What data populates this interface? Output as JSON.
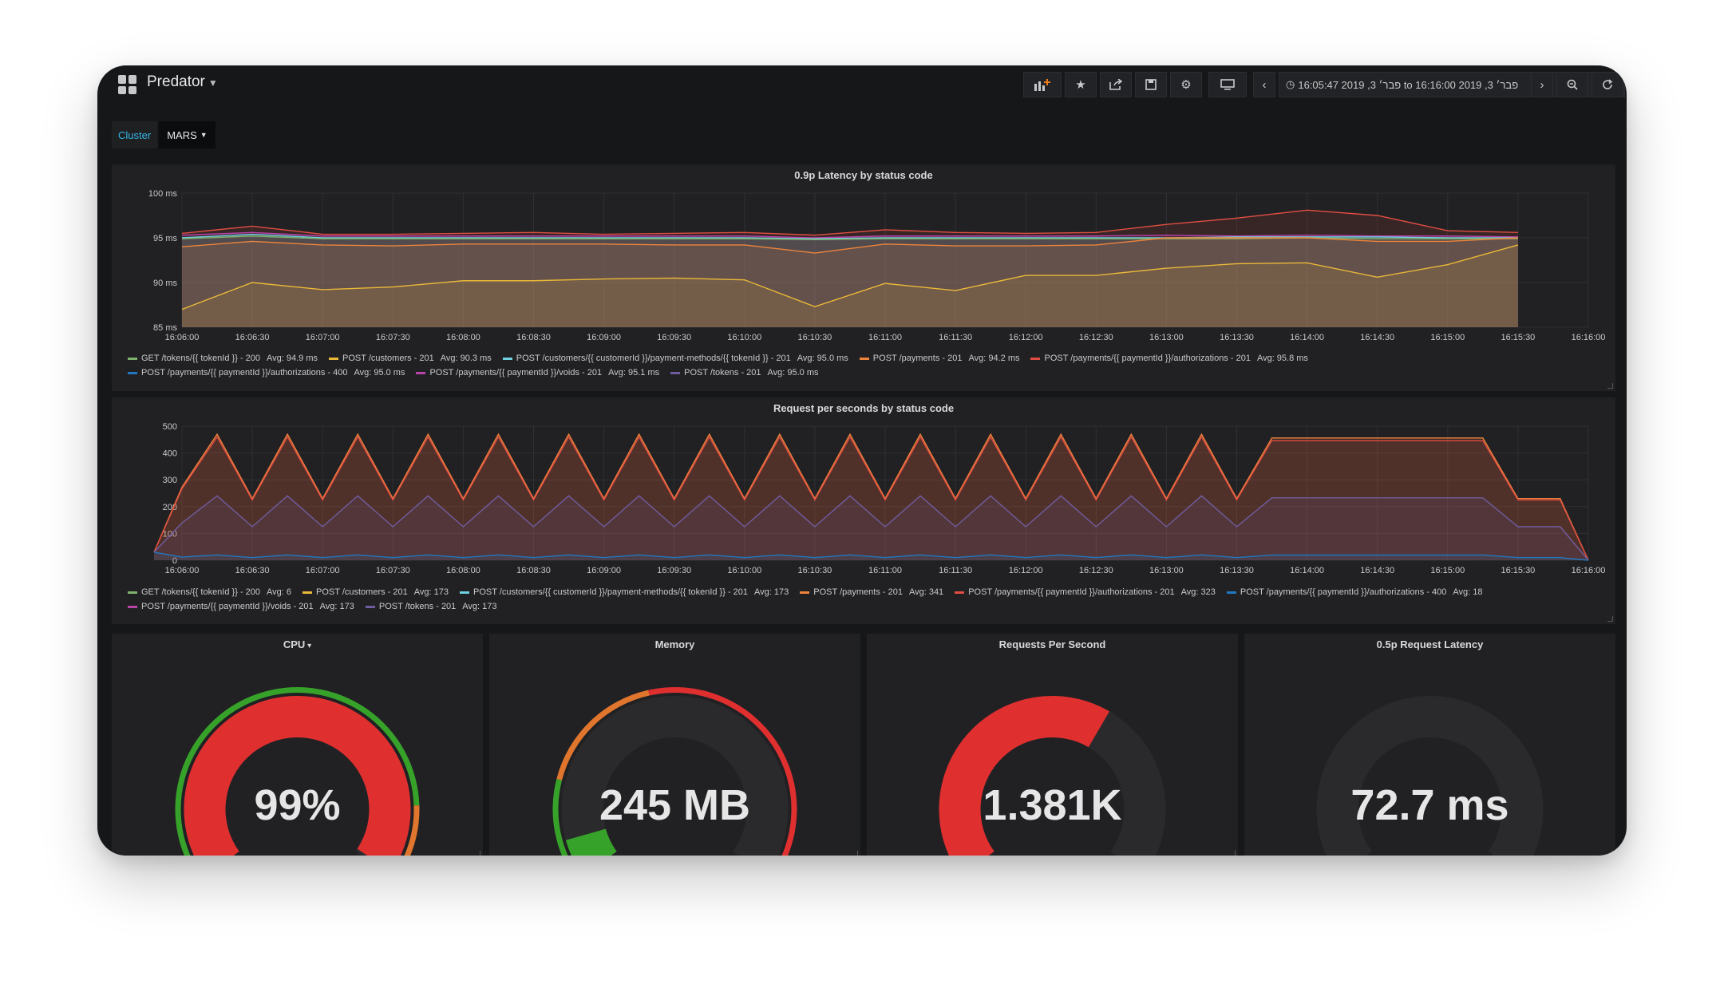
{
  "header": {
    "title": "Predator",
    "time_range": "16:05:47 2019 ,3 פבר׳ to 16:16:00 2019 ,3 פבר׳"
  },
  "variables": {
    "label": "Cluster",
    "value": "MARS"
  },
  "icons": [
    "grid-icon",
    "add-panel-icon",
    "star-icon",
    "share-icon",
    "save-icon",
    "settings-icon",
    "tv-icon",
    "chevron-left-icon",
    "clock-icon",
    "chevron-right-icon",
    "zoom-out-icon",
    "refresh-icon"
  ],
  "colors": {
    "green": "#7eb26d",
    "yellow": "#eab839",
    "cyan": "#6ed0e0",
    "orange": "#ef843c",
    "red": "#e24d42",
    "blue": "#1f78c1",
    "pink": "#ba43a9",
    "purple": "#705da0"
  },
  "x_ticks": [
    "16:06:00",
    "16:06:30",
    "16:07:00",
    "16:07:30",
    "16:08:00",
    "16:08:30",
    "16:09:00",
    "16:09:30",
    "16:10:00",
    "16:10:30",
    "16:11:00",
    "16:11:30",
    "16:12:00",
    "16:12:30",
    "16:13:00",
    "16:13:30",
    "16:14:00",
    "16:14:30",
    "16:15:00",
    "16:15:30",
    "16:16:00"
  ],
  "latency_panel": {
    "title": "0.9p Latency by status code",
    "y_ticks": [
      "100 ms",
      "95 ms",
      "90 ms",
      "85 ms"
    ],
    "legend": [
      {
        "name": "GET /tokens/{{ tokenId }} - 200",
        "avg": "Avg: 94.9 ms",
        "color": "#7eb26d"
      },
      {
        "name": "POST /customers - 201",
        "avg": "Avg: 90.3 ms",
        "color": "#eab839"
      },
      {
        "name": "POST /customers/{{ customerId }}/payment-methods/{{ tokenId }} - 201",
        "avg": "Avg: 95.0 ms",
        "color": "#6ed0e0"
      },
      {
        "name": "POST /payments - 201",
        "avg": "Avg: 94.2 ms",
        "color": "#ef843c"
      },
      {
        "name": "POST /payments/{{ paymentId }}/authorizations - 201",
        "avg": "Avg: 95.8 ms",
        "color": "#e24d42"
      },
      {
        "name": "POST /payments/{{ paymentId }}/authorizations - 400",
        "avg": "Avg: 95.0 ms",
        "color": "#1f78c1"
      },
      {
        "name": "POST /payments/{{ paymentId }}/voids - 201",
        "avg": "Avg: 95.1 ms",
        "color": "#ba43a9"
      },
      {
        "name": "POST /tokens - 201",
        "avg": "Avg: 95.0 ms",
        "color": "#705da0"
      }
    ]
  },
  "rps_panel": {
    "title": "Request per seconds by status code",
    "y_ticks": [
      "500",
      "400",
      "300",
      "200",
      "100",
      "0"
    ],
    "legend": [
      {
        "name": "GET /tokens/{{ tokenId }} - 200",
        "avg": "Avg: 6",
        "color": "#7eb26d"
      },
      {
        "name": "POST /customers - 201",
        "avg": "Avg: 173",
        "color": "#eab839"
      },
      {
        "name": "POST /customers/{{ customerId }}/payment-methods/{{ tokenId }} - 201",
        "avg": "Avg: 173",
        "color": "#6ed0e0"
      },
      {
        "name": "POST /payments - 201",
        "avg": "Avg: 341",
        "color": "#ef843c"
      },
      {
        "name": "POST /payments/{{ paymentId }}/authorizations - 201",
        "avg": "Avg: 323",
        "color": "#e24d42"
      },
      {
        "name": "POST /payments/{{ paymentId }}/authorizations - 400",
        "avg": "Avg: 18",
        "color": "#1f78c1"
      },
      {
        "name": "POST /payments/{{ paymentId }}/voids - 201",
        "avg": "Avg: 173",
        "color": "#ba43a9"
      },
      {
        "name": "POST /tokens - 201",
        "avg": "Avg: 173",
        "color": "#705da0"
      }
    ]
  },
  "chart_data": [
    {
      "type": "area",
      "title": "0.9p Latency by status code",
      "x": [
        "16:06:00",
        "16:06:30",
        "16:07:00",
        "16:07:30",
        "16:08:00",
        "16:08:30",
        "16:09:00",
        "16:09:30",
        "16:10:00",
        "16:10:30",
        "16:11:00",
        "16:11:30",
        "16:12:00",
        "16:12:30",
        "16:13:00",
        "16:13:30",
        "16:14:00",
        "16:14:30",
        "16:15:00",
        "16:15:30"
      ],
      "ylim": [
        85,
        100
      ],
      "y_unit": "ms",
      "series": [
        {
          "name": "POST /payments/{{ paymentId }}/authorizations - 201",
          "color": "#e24d42",
          "values": [
            95.5,
            96.3,
            95.4,
            95.4,
            95.5,
            95.6,
            95.4,
            95.5,
            95.6,
            95.3,
            95.9,
            95.6,
            95.5,
            95.6,
            96.5,
            97.2,
            98.1,
            97.5,
            95.8,
            95.6
          ]
        },
        {
          "name": "POST /payments/{{ paymentId }}/voids - 201",
          "color": "#ba43a9",
          "values": [
            95.3,
            95.6,
            95.2,
            95.2,
            95.2,
            95.2,
            95.2,
            95.2,
            95.2,
            95.0,
            95.2,
            95.2,
            95.2,
            95.2,
            95.3,
            95.2,
            95.3,
            95.2,
            95.2,
            95.1
          ]
        },
        {
          "name": "POST /customers/{{ customerId }}/payment-methods/{{ tokenId }} - 201",
          "color": "#6ed0e0",
          "values": [
            95.0,
            95.4,
            95.0,
            95.0,
            95.0,
            95.0,
            95.0,
            95.0,
            95.0,
            94.9,
            95.0,
            95.0,
            95.0,
            95.0,
            95.0,
            95.1,
            95.1,
            95.1,
            95.0,
            95.0
          ]
        },
        {
          "name": "GET /tokens/{{ tokenId }} - 200",
          "color": "#7eb26d",
          "values": [
            94.9,
            95.2,
            94.9,
            94.9,
            94.9,
            94.9,
            94.9,
            94.9,
            94.9,
            94.8,
            94.9,
            94.9,
            94.9,
            94.9,
            94.9,
            94.9,
            95.0,
            94.9,
            94.9,
            94.9
          ]
        },
        {
          "name": "POST /payments - 201",
          "color": "#ef843c",
          "values": [
            94.0,
            94.6,
            94.2,
            94.1,
            94.3,
            94.3,
            94.3,
            94.2,
            94.2,
            93.3,
            94.3,
            94.1,
            94.1,
            94.2,
            95.0,
            95.0,
            95.0,
            94.6,
            94.6,
            95.0
          ]
        },
        {
          "name": "POST /customers - 201",
          "color": "#eab839",
          "values": [
            87.0,
            90.0,
            89.2,
            89.5,
            90.2,
            90.2,
            90.4,
            90.5,
            90.3,
            87.3,
            89.9,
            89.1,
            90.8,
            90.8,
            91.6,
            92.1,
            92.2,
            90.6,
            92.0,
            94.2
          ]
        }
      ]
    },
    {
      "type": "area",
      "title": "Request per seconds by status code",
      "x": [
        "16:06:00",
        "16:06:30",
        "16:07:00",
        "16:07:30",
        "16:08:00",
        "16:08:30",
        "16:09:00",
        "16:09:30",
        "16:10:00",
        "16:10:30",
        "16:11:00",
        "16:11:30",
        "16:12:00",
        "16:12:30",
        "16:13:00",
        "16:13:30",
        "16:14:00",
        "16:14:30",
        "16:15:00",
        "16:15:30",
        "16:16:00"
      ],
      "ylim": [
        0,
        500
      ],
      "series": [
        {
          "name": "POST /payments - 201",
          "color": "#ef843c",
          "peak": 470,
          "trough": 230
        },
        {
          "name": "POST /payments/{{ paymentId }}/authorizations - 201",
          "color": "#e24d42",
          "peak": 460,
          "trough": 225
        },
        {
          "name": "POST /tokens - 201",
          "color": "#705da0",
          "peak": 240,
          "trough": 125
        },
        {
          "name": "POST /payments/{{ paymentId }}/authorizations - 400",
          "color": "#1f78c1",
          "peak": 20,
          "trough": 10
        }
      ]
    }
  ],
  "gauges": [
    {
      "title": "CPU",
      "value": "99%",
      "fraction": 0.99,
      "color": "#e02f2f",
      "thresholds": [
        {
          "from": 0,
          "to": 0.85,
          "color": "#37a229"
        },
        {
          "from": 0.85,
          "to": 0.95,
          "color": "#e0752d"
        },
        {
          "from": 0.95,
          "to": 1,
          "color": "#e02f2f"
        }
      ]
    },
    {
      "title": "Memory",
      "value": "245 MB",
      "fraction": 0.08,
      "color": "#37a229",
      "thresholds": [
        {
          "from": 0,
          "to": 0.2,
          "color": "#37a229"
        },
        {
          "from": 0.2,
          "to": 0.45,
          "color": "#e0752d"
        },
        {
          "from": 0.45,
          "to": 1,
          "color": "#e02f2f"
        }
      ]
    },
    {
      "title": "Requests Per Second",
      "value": "1.381K",
      "fraction": 0.62,
      "color": "#e02f2f",
      "thresholds": []
    },
    {
      "title": "0.5p Request Latency",
      "value": "72.7 ms",
      "fraction": 0.0,
      "color": "#e02f2f",
      "thresholds": []
    }
  ]
}
